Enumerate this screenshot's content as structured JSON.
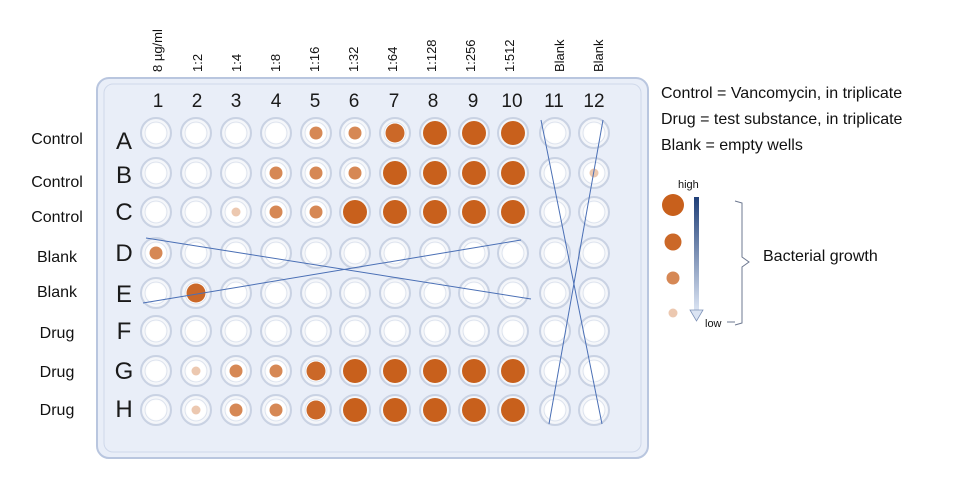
{
  "concentrations": [
    "8 µg/ml",
    "1:2",
    "1:4",
    "1:8",
    "1:16",
    "1:32",
    "1:64",
    "1:128",
    "1:256",
    "1:512",
    "Blank",
    "Blank"
  ],
  "columns": [
    "1",
    "2",
    "3",
    "4",
    "5",
    "6",
    "7",
    "8",
    "9",
    "10",
    "11",
    "12"
  ],
  "rows": [
    {
      "letter": "A",
      "label": "Control",
      "growth": [
        0,
        0,
        0,
        0,
        2,
        2,
        3,
        4,
        4,
        4,
        0,
        0
      ]
    },
    {
      "letter": "B",
      "label": "Control",
      "growth": [
        0,
        0,
        0,
        2,
        2,
        2,
        4,
        4,
        4,
        4,
        0,
        1
      ]
    },
    {
      "letter": "C",
      "label": "Control",
      "growth": [
        0,
        0,
        1,
        2,
        2,
        4,
        4,
        4,
        4,
        4,
        0,
        0
      ]
    },
    {
      "letter": "D",
      "label": "Blank",
      "growth": [
        2,
        0,
        0,
        0,
        0,
        0,
        0,
        0,
        0,
        0,
        0,
        0
      ]
    },
    {
      "letter": "E",
      "label": "Blank",
      "growth": [
        0,
        3,
        0,
        0,
        0,
        0,
        0,
        0,
        0,
        0,
        0,
        0
      ]
    },
    {
      "letter": "F",
      "label": "Drug",
      "growth": [
        0,
        0,
        0,
        0,
        0,
        0,
        0,
        0,
        0,
        0,
        0,
        0
      ]
    },
    {
      "letter": "G",
      "label": "Drug",
      "growth": [
        0,
        1,
        2,
        2,
        3,
        4,
        4,
        4,
        4,
        4,
        0,
        0
      ]
    },
    {
      "letter": "H",
      "label": "Drug",
      "growth": [
        0,
        1,
        2,
        2,
        3,
        4,
        4,
        4,
        4,
        4,
        0,
        0
      ]
    }
  ],
  "legend": {
    "lines": [
      "Control = Vancomycin, in triplicate",
      "Drug = test substance, in triplicate",
      "Blank = empty wells"
    ],
    "high": "high",
    "low": "low",
    "bacterial_growth": "Bacterial growth",
    "scale_levels": [
      4,
      3,
      2,
      1
    ]
  },
  "colors": {
    "growth": "#c8601c",
    "plate_fill": "#e9eef8",
    "plate_stroke": "#b9c6df",
    "well_stroke": "#c9d2e3",
    "cross_line": "#4a6fb5",
    "arrow_top": "#1f3f78",
    "arrow_bottom": "#dbe4f3"
  }
}
